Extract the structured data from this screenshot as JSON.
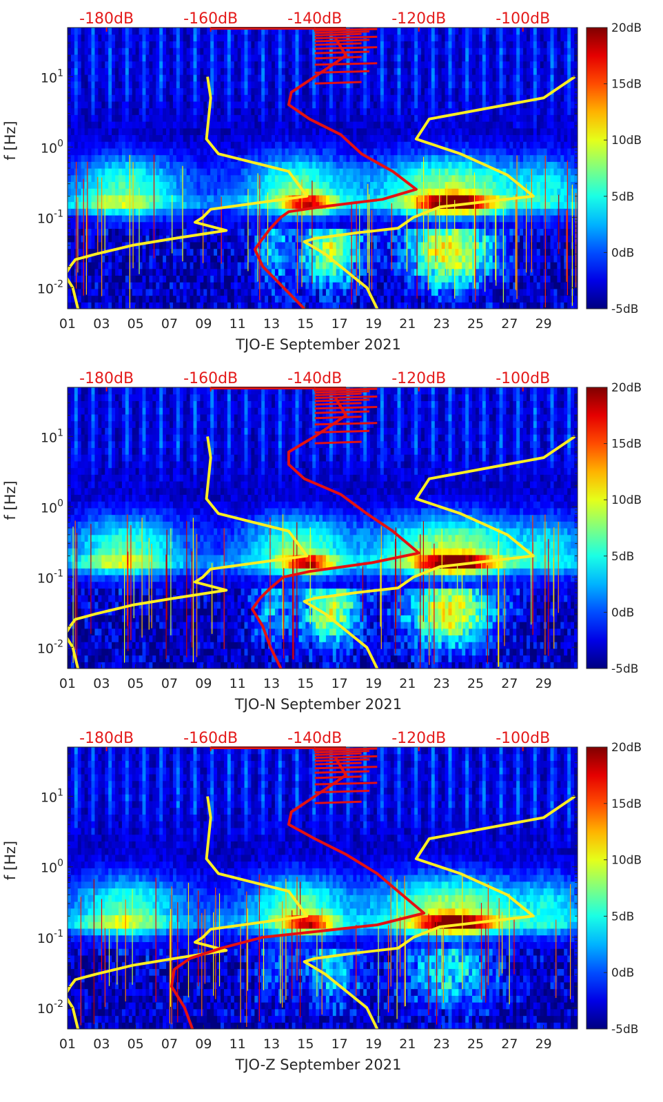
{
  "chart_data": [
    {
      "type": "heatmap",
      "title": "",
      "xlabel": "TJO-E September 2021",
      "ylabel": "f [Hz]",
      "x_ticks": [
        "01",
        "03",
        "05",
        "07",
        "09",
        "11",
        "13",
        "15",
        "17",
        "19",
        "21",
        "23",
        "25",
        "27",
        "29"
      ],
      "x_range_days": [
        1,
        31
      ],
      "y_range_hz": [
        0.005,
        50
      ],
      "y_ticks": [
        {
          "exp": -2,
          "label_base": "10",
          "label_exp": "-2"
        },
        {
          "exp": -1,
          "label_base": "10",
          "label_exp": "-1"
        },
        {
          "exp": 0,
          "label_base": "10",
          "label_exp": "0"
        },
        {
          "exp": 1,
          "label_base": "10",
          "label_exp": "1"
        }
      ],
      "top_axis_labels": [
        "-180dB",
        "-160dB",
        "-140dB",
        "-120dB",
        "-100dB"
      ],
      "top_axis_range_db": [
        -187.5,
        -89.5
      ],
      "colorbar": {
        "labels": [
          "20dB",
          "15dB",
          "10dB",
          "5dB",
          "0dB",
          "-5dB"
        ],
        "range_db": [
          -5,
          20
        ],
        "colormap": "jet"
      },
      "yellow_curve": [
        [
          10,
          -160.6
        ],
        [
          5,
          -160
        ],
        [
          1.3,
          -160.8
        ],
        [
          0.8,
          -158.5
        ],
        [
          0.45,
          -145
        ],
        [
          0.2,
          -141.5
        ],
        [
          0.13,
          -160
        ],
        [
          0.1,
          -161.5
        ],
        [
          0.085,
          -163
        ],
        [
          0.065,
          -157
        ],
        [
          0.05,
          -167
        ],
        [
          0.04,
          -175
        ],
        [
          0.03,
          -182
        ],
        [
          0.025,
          -186
        ],
        [
          0.02,
          -187
        ],
        [
          0.015,
          -188
        ],
        [
          0.01,
          -186.5
        ],
        [
          0.005,
          -185.5
        ]
      ],
      "yellow_curve_2": [
        [
          10,
          -90
        ],
        [
          5,
          -96
        ],
        [
          2.5,
          -118
        ],
        [
          1.3,
          -120.5
        ],
        [
          0.8,
          -112
        ],
        [
          0.4,
          -103
        ],
        [
          0.2,
          -98
        ],
        [
          0.14,
          -116
        ],
        [
          0.1,
          -121
        ],
        [
          0.07,
          -124
        ],
        [
          0.06,
          -132
        ],
        [
          0.05,
          -140
        ],
        [
          0.045,
          -142
        ],
        [
          0.03,
          -138
        ],
        [
          0.01,
          -130
        ],
        [
          0.005,
          -128
        ]
      ],
      "red_curve": [
        [
          35,
          -136
        ],
        [
          20,
          -134
        ],
        [
          10,
          -140
        ],
        [
          6,
          -144.5
        ],
        [
          4,
          -145
        ],
        [
          2.5,
          -141
        ],
        [
          1.5,
          -135
        ],
        [
          0.8,
          -131
        ],
        [
          0.45,
          -125
        ],
        [
          0.25,
          -120.5
        ],
        [
          0.18,
          -127
        ],
        [
          0.14,
          -139
        ],
        [
          0.12,
          -145
        ],
        [
          0.1,
          -146.5
        ],
        [
          0.07,
          -148.5
        ],
        [
          0.05,
          -150
        ],
        [
          0.035,
          -151.5
        ],
        [
          0.02,
          -150
        ],
        [
          0.01,
          -146
        ],
        [
          0.005,
          -142
        ]
      ]
    },
    {
      "type": "heatmap",
      "title": "",
      "xlabel": "TJO-N September 2021",
      "ylabel": "f [Hz]",
      "x_ticks": [
        "01",
        "03",
        "05",
        "07",
        "09",
        "11",
        "13",
        "15",
        "17",
        "19",
        "21",
        "23",
        "25",
        "27",
        "29"
      ],
      "x_range_days": [
        1,
        31
      ],
      "y_range_hz": [
        0.005,
        50
      ],
      "y_ticks": [
        {
          "exp": -2,
          "label_base": "10",
          "label_exp": "-2"
        },
        {
          "exp": -1,
          "label_base": "10",
          "label_exp": "-1"
        },
        {
          "exp": 0,
          "label_base": "10",
          "label_exp": "0"
        },
        {
          "exp": 1,
          "label_base": "10",
          "label_exp": "1"
        }
      ],
      "top_axis_labels": [
        "-180dB",
        "-160dB",
        "-140dB",
        "-120dB",
        "-100dB"
      ],
      "top_axis_range_db": [
        -187.5,
        -89.5
      ],
      "colorbar": {
        "labels": [
          "20dB",
          "15dB",
          "10dB",
          "5dB",
          "0dB",
          "-5dB"
        ],
        "range_db": [
          -5,
          20
        ],
        "colormap": "jet"
      },
      "yellow_curve": [
        [
          10,
          -160.6
        ],
        [
          5,
          -160
        ],
        [
          1.3,
          -160.8
        ],
        [
          0.8,
          -158.5
        ],
        [
          0.45,
          -145
        ],
        [
          0.2,
          -141.5
        ],
        [
          0.13,
          -160
        ],
        [
          0.1,
          -161.5
        ],
        [
          0.085,
          -163
        ],
        [
          0.065,
          -157
        ],
        [
          0.05,
          -167
        ],
        [
          0.04,
          -175
        ],
        [
          0.03,
          -182
        ],
        [
          0.025,
          -186
        ],
        [
          0.02,
          -187
        ],
        [
          0.015,
          -188
        ],
        [
          0.01,
          -186.5
        ],
        [
          0.005,
          -185.5
        ]
      ],
      "yellow_curve_2": [
        [
          10,
          -90
        ],
        [
          5,
          -96
        ],
        [
          2.5,
          -118
        ],
        [
          1.3,
          -120.5
        ],
        [
          0.8,
          -112
        ],
        [
          0.4,
          -103
        ],
        [
          0.2,
          -98
        ],
        [
          0.14,
          -116
        ],
        [
          0.1,
          -121
        ],
        [
          0.07,
          -124
        ],
        [
          0.06,
          -132
        ],
        [
          0.05,
          -140
        ],
        [
          0.045,
          -142
        ],
        [
          0.03,
          -138
        ],
        [
          0.01,
          -130
        ],
        [
          0.005,
          -128
        ]
      ],
      "red_curve": [
        [
          35,
          -136
        ],
        [
          20,
          -134
        ],
        [
          10,
          -140
        ],
        [
          6,
          -145
        ],
        [
          4,
          -145
        ],
        [
          2.5,
          -142
        ],
        [
          1.5,
          -135
        ],
        [
          0.8,
          -130
        ],
        [
          0.45,
          -125
        ],
        [
          0.22,
          -120
        ],
        [
          0.16,
          -129
        ],
        [
          0.12,
          -141
        ],
        [
          0.1,
          -146
        ],
        [
          0.07,
          -148.5
        ],
        [
          0.05,
          -150.5
        ],
        [
          0.035,
          -152
        ],
        [
          0.02,
          -150
        ],
        [
          0.01,
          -148.5
        ],
        [
          0.005,
          -146.5
        ]
      ]
    },
    {
      "type": "heatmap",
      "title": "",
      "xlabel": "TJO-Z September 2021",
      "ylabel": "f [Hz]",
      "x_ticks": [
        "01",
        "03",
        "05",
        "07",
        "09",
        "11",
        "13",
        "15",
        "17",
        "19",
        "21",
        "23",
        "25",
        "27",
        "29"
      ],
      "x_range_days": [
        1,
        31
      ],
      "y_range_hz": [
        0.005,
        50
      ],
      "y_ticks": [
        {
          "exp": -2,
          "label_base": "10",
          "label_exp": "-2"
        },
        {
          "exp": -1,
          "label_base": "10",
          "label_exp": "-1"
        },
        {
          "exp": 0,
          "label_base": "10",
          "label_exp": "0"
        },
        {
          "exp": 1,
          "label_base": "10",
          "label_exp": "1"
        }
      ],
      "top_axis_labels": [
        "-180dB",
        "-160dB",
        "-140dB",
        "-120dB",
        "-100dB"
      ],
      "top_axis_range_db": [
        -187.5,
        -89.5
      ],
      "colorbar": {
        "labels": [
          "20dB",
          "15dB",
          "10dB",
          "5dB",
          "0dB",
          "-5dB"
        ],
        "range_db": [
          -5,
          20
        ],
        "colormap": "jet"
      },
      "yellow_curve": [
        [
          10,
          -160.6
        ],
        [
          5,
          -160
        ],
        [
          1.3,
          -160.8
        ],
        [
          0.8,
          -158.5
        ],
        [
          0.45,
          -145
        ],
        [
          0.2,
          -141.5
        ],
        [
          0.13,
          -160
        ],
        [
          0.1,
          -161.5
        ],
        [
          0.085,
          -163
        ],
        [
          0.065,
          -157
        ],
        [
          0.05,
          -167
        ],
        [
          0.04,
          -175
        ],
        [
          0.03,
          -182
        ],
        [
          0.025,
          -186
        ],
        [
          0.02,
          -187
        ],
        [
          0.015,
          -188
        ],
        [
          0.01,
          -186.5
        ],
        [
          0.005,
          -185.5
        ]
      ],
      "yellow_curve_2": [
        [
          10,
          -90
        ],
        [
          5,
          -96
        ],
        [
          2.5,
          -118
        ],
        [
          1.3,
          -120.5
        ],
        [
          0.8,
          -112
        ],
        [
          0.4,
          -103
        ],
        [
          0.2,
          -98
        ],
        [
          0.14,
          -116
        ],
        [
          0.1,
          -121
        ],
        [
          0.07,
          -124
        ],
        [
          0.06,
          -132
        ],
        [
          0.05,
          -140
        ],
        [
          0.045,
          -142
        ],
        [
          0.03,
          -138
        ],
        [
          0.01,
          -130
        ],
        [
          0.005,
          -128
        ]
      ],
      "red_curve": [
        [
          35,
          -136
        ],
        [
          20,
          -134
        ],
        [
          10,
          -140
        ],
        [
          6,
          -144.5
        ],
        [
          4,
          -145
        ],
        [
          2.5,
          -140
        ],
        [
          1.5,
          -134
        ],
        [
          0.8,
          -128
        ],
        [
          0.45,
          -124
        ],
        [
          0.22,
          -119
        ],
        [
          0.15,
          -128
        ],
        [
          0.12,
          -140
        ],
        [
          0.1,
          -150
        ],
        [
          0.07,
          -158
        ],
        [
          0.05,
          -164
        ],
        [
          0.035,
          -167
        ],
        [
          0.02,
          -167.5
        ],
        [
          0.01,
          -165
        ],
        [
          0.005,
          -163.5
        ]
      ]
    }
  ]
}
